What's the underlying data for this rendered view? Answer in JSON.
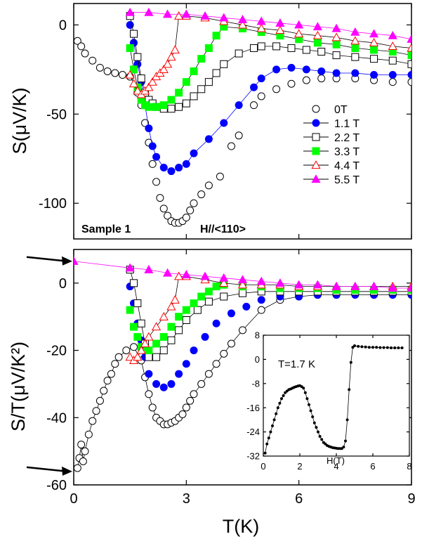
{
  "chart_data": [
    {
      "type": "scatter",
      "panel": "top",
      "xlim": [
        0,
        9
      ],
      "ylim": [
        -120,
        12
      ],
      "yticks": [
        0,
        -50,
        -100
      ],
      "ylabel": "S(μV/K)",
      "xlabel": "",
      "annotations": [
        "Sample 1",
        "H//<110>"
      ],
      "legend_position": "right",
      "series": [
        {
          "name": "0T",
          "color": "#000000",
          "marker": "open-circle",
          "line": false,
          "x": [
            0.1,
            0.2,
            0.3,
            0.5,
            0.7,
            0.9,
            1.1,
            1.3,
            1.5,
            1.7,
            1.8,
            1.9,
            2.0,
            2.1,
            2.2,
            2.3,
            2.4,
            2.5,
            2.6,
            2.7,
            2.8,
            2.9,
            3.0,
            3.1,
            3.2,
            3.4,
            3.6,
            3.9,
            4.2,
            4.4,
            4.8,
            5.0,
            5.4,
            5.8,
            6.2,
            6.6,
            7.0,
            7.5,
            8.0,
            8.5,
            9.0
          ],
          "y": [
            -9,
            -12,
            -16,
            -20,
            -24,
            -26,
            -27,
            -28,
            -29,
            -38,
            -45,
            -55,
            -66,
            -78,
            -88,
            -97,
            -103,
            -107,
            -110,
            -111,
            -111,
            -110,
            -108,
            -104,
            -100,
            -95,
            -90,
            -85,
            -68,
            -62,
            -45,
            -40,
            -36,
            -33,
            -31,
            -30,
            -30,
            -30,
            -31,
            -32,
            -32
          ]
        },
        {
          "name": "1.1 T",
          "color": "#0000ff",
          "marker": "filled-circle",
          "line": true,
          "x": [
            1.5,
            1.6,
            1.7,
            1.8,
            1.9,
            2.0,
            2.1,
            2.2,
            2.4,
            2.6,
            2.8,
            3.0,
            3.2,
            3.6,
            4.0,
            4.4,
            4.8,
            5.0,
            5.4,
            5.8,
            6.2,
            6.6,
            7.0,
            7.5,
            8.0,
            8.5,
            9.0
          ],
          "y": [
            0,
            -10,
            -22,
            -32,
            -45,
            -58,
            -68,
            -74,
            -80,
            -82,
            -80,
            -78,
            -72,
            -64,
            -55,
            -45,
            -35,
            -30,
            -25,
            -24,
            -25,
            -26,
            -27,
            -27,
            -28,
            -28,
            -28
          ]
        },
        {
          "name": "2.2 T",
          "color": "#000000",
          "marker": "open-square",
          "line": true,
          "x": [
            1.5,
            1.6,
            1.7,
            1.8,
            1.9,
            2.0,
            2.1,
            2.2,
            2.4,
            2.6,
            2.8,
            3.0,
            3.2,
            3.4,
            3.6,
            3.8,
            4.0,
            4.4,
            4.8,
            5.0,
            5.4,
            5.8,
            6.2,
            6.6,
            7.0,
            7.5,
            8.0,
            8.5,
            9.0
          ],
          "y": [
            5,
            -5,
            -18,
            -30,
            -38,
            -42,
            -44,
            -46,
            -47,
            -47,
            -46,
            -44,
            -40,
            -36,
            -32,
            -27,
            -22,
            -16,
            -13,
            -12,
            -12,
            -13,
            -14,
            -15,
            -17,
            -18,
            -19,
            -20,
            -22
          ]
        },
        {
          "name": "3.3 T",
          "color": "#00ff00",
          "marker": "filled-square",
          "line": true,
          "x": [
            1.5,
            1.6,
            1.7,
            1.8,
            1.9,
            2.0,
            2.2,
            2.4,
            2.6,
            2.8,
            3.0,
            3.2,
            3.4,
            3.6,
            3.8,
            4.0,
            4.5,
            5.0,
            5.5,
            6.0,
            6.5,
            7.0,
            7.5,
            8.0,
            8.5,
            9.0
          ],
          "y": [
            -13,
            -25,
            -35,
            -42,
            -45,
            -46,
            -46,
            -45,
            -42,
            -38,
            -32,
            -26,
            -19,
            -13,
            -6,
            -1,
            -2,
            -4,
            -6,
            -8,
            -10,
            -11,
            -13,
            -14,
            -15,
            -17
          ]
        },
        {
          "name": "4.4 T",
          "color": "#ff0000",
          "marker": "open-triangle",
          "line": true,
          "x": [
            1.5,
            1.6,
            1.7,
            1.8,
            1.9,
            2.0,
            2.1,
            2.2,
            2.3,
            2.4,
            2.5,
            2.6,
            2.7,
            2.8,
            3.0,
            3.5,
            4.0,
            4.5,
            5.0,
            5.5,
            6.0,
            6.5,
            7.0,
            7.5,
            8.0,
            8.5,
            9.0
          ],
          "y": [
            -28,
            -33,
            -37,
            -39,
            -37,
            -35,
            -32,
            -29,
            -27,
            -25,
            -22,
            -18,
            -14,
            5,
            5,
            4,
            2,
            0,
            -2,
            -3,
            -5,
            -6,
            -7,
            -9,
            -10,
            -12,
            -13
          ]
        },
        {
          "name": "5.5 T",
          "color": "#ff00ff",
          "marker": "filled-triangle",
          "line": true,
          "x": [
            1.5,
            2.0,
            2.5,
            3.0,
            3.5,
            4.0,
            4.5,
            5.0,
            5.5,
            6.0,
            6.5,
            7.0,
            7.5,
            8.0,
            8.5,
            9.0
          ],
          "y": [
            7,
            7,
            6,
            6,
            5,
            4,
            3,
            2,
            1,
            0,
            -1,
            -2,
            -4,
            -5,
            -6,
            -8
          ]
        }
      ]
    },
    {
      "type": "scatter",
      "panel": "bottom",
      "xlim": [
        0,
        9
      ],
      "ylim": [
        -60,
        10
      ],
      "xticks": [
        0,
        3,
        6,
        9
      ],
      "yticks": [
        0,
        -20,
        -40,
        -60
      ],
      "xlabel": "T(K)",
      "ylabel": "S/T(μV/K²)",
      "series": [
        {
          "name": "0T",
          "color": "#000000",
          "marker": "open-circle",
          "line": true,
          "x": [
            0.1,
            0.15,
            0.2,
            0.25,
            0.3,
            0.4,
            0.5,
            0.6,
            0.7,
            0.8,
            0.9,
            1.0,
            1.1,
            1.2,
            1.4,
            1.6,
            1.8,
            1.9,
            2.0,
            2.1,
            2.2,
            2.3,
            2.4,
            2.5,
            2.6,
            2.7,
            2.8,
            2.9,
            3.0,
            3.1,
            3.2,
            3.4,
            3.6,
            3.8,
            4.0,
            4.2,
            4.5,
            5.0,
            5.5,
            6.0,
            6.5,
            7.0,
            8.0,
            9.0
          ],
          "y": [
            -55,
            -52,
            -48,
            -53,
            -50,
            -45,
            -41,
            -38,
            -35,
            -32,
            -29,
            -27,
            -24,
            -22,
            -20,
            -19,
            -23,
            -28,
            -33,
            -37,
            -40,
            -41,
            -42,
            -42,
            -41.5,
            -41,
            -40,
            -39,
            -37,
            -35,
            -33,
            -30,
            -27,
            -24,
            -21,
            -18,
            -14,
            -8,
            -5,
            -4,
            -3.5,
            -3.5,
            -3.5,
            -3.5
          ]
        },
        {
          "name": "1.1 T",
          "color": "#0000ff",
          "marker": "filled-circle",
          "line": false,
          "x": [
            1.5,
            1.6,
            1.7,
            1.8,
            1.9,
            2.0,
            2.2,
            2.4,
            2.6,
            2.8,
            3.0,
            3.2,
            3.5,
            3.8,
            4.2,
            4.6,
            5.0,
            5.5,
            6.0,
            6.5,
            7.0,
            7.5,
            8.0,
            8.5,
            9.0
          ],
          "y": [
            -1,
            -6,
            -12,
            -17,
            -22,
            -27,
            -30,
            -31,
            -30,
            -27,
            -24,
            -20,
            -16,
            -12,
            -9,
            -7,
            -5,
            -4,
            -4,
            -3.5,
            -3.5,
            -3.5,
            -3.5,
            -3.5,
            -3.5
          ]
        },
        {
          "name": "2.2 T",
          "color": "#000000",
          "marker": "open-square",
          "line": true,
          "x": [
            1.5,
            1.6,
            1.7,
            1.8,
            1.9,
            2.0,
            2.2,
            2.4,
            2.6,
            2.8,
            3.0,
            3.3,
            3.6,
            4.0,
            4.5,
            5.0,
            5.5,
            6.0,
            6.5,
            7.0,
            7.5,
            8.0,
            8.5,
            9.0
          ],
          "y": [
            4,
            0,
            -6,
            -12,
            -18,
            -22,
            -22,
            -20,
            -17,
            -14,
            -11,
            -8,
            -5.5,
            -4,
            -3,
            -2.5,
            -2.5,
            -2.5,
            -2.5,
            -2.5,
            -2.5,
            -2.5,
            -2.5,
            -2.5
          ]
        },
        {
          "name": "3.3 T",
          "color": "#00ff00",
          "marker": "filled-square",
          "line": false,
          "x": [
            1.5,
            1.6,
            1.7,
            1.8,
            2.0,
            2.2,
            2.4,
            2.6,
            2.8,
            3.0,
            3.2,
            3.4,
            3.6,
            3.8,
            4.0,
            4.5,
            5.0,
            5.5,
            6.0,
            6.5,
            7.0,
            7.5,
            8.0,
            8.5,
            9.0
          ],
          "y": [
            -8,
            -13,
            -16,
            -19,
            -20,
            -18,
            -16,
            -13,
            -10,
            -8,
            -6,
            -4,
            -2.5,
            -1,
            -0.5,
            -1,
            -1,
            -1.5,
            -1.5,
            -1.5,
            -2,
            -2,
            -2,
            -2,
            -2
          ]
        },
        {
          "name": "4.4 T",
          "color": "#ff0000",
          "marker": "open-triangle",
          "line": true,
          "x": [
            1.5,
            1.6,
            1.7,
            1.8,
            1.9,
            2.0,
            2.2,
            2.4,
            2.6,
            2.7,
            2.8,
            3.0,
            3.5,
            4.0,
            4.5,
            5.0,
            5.5,
            6.0,
            6.5,
            7.0,
            7.5,
            8.0,
            8.5,
            9.0
          ],
          "y": [
            -22,
            -23,
            -22,
            -20,
            -18,
            -16,
            -13,
            -10,
            -7,
            -5,
            2,
            2,
            1,
            0,
            -0.5,
            -0.5,
            -0.5,
            -1,
            -1,
            -1,
            -1,
            -1,
            -1,
            -1
          ]
        },
        {
          "name": "5.5 T",
          "color": "#ff00ff",
          "marker": "filled-triangle",
          "line": true,
          "x": [
            0,
            1.5,
            2.0,
            2.5,
            3.0,
            3.5,
            4.0,
            4.5,
            5.0,
            5.5,
            6.0,
            6.5,
            7.0,
            7.5,
            8.0,
            8.5,
            9.0
          ],
          "y": [
            6.5,
            4.5,
            4,
            3,
            2.5,
            2,
            1.5,
            1,
            0.5,
            0,
            -0.5,
            -0.5,
            -1,
            -1,
            -1,
            -1.5,
            -1.5
          ]
        }
      ],
      "arrows": [
        {
          "label": "",
          "y": 6.5
        },
        {
          "label": "",
          "y": -56
        }
      ]
    },
    {
      "type": "line",
      "panel": "inset",
      "annotation": "T=1.7 K",
      "xlabel": "H(T)",
      "ylabel": "",
      "xlim": [
        0,
        8
      ],
      "ylim": [
        -32,
        8
      ],
      "xticks": [
        0,
        2,
        4,
        6,
        8
      ],
      "yticks": [
        8,
        0,
        -8,
        -16,
        -24,
        -32
      ],
      "series": [
        {
          "name": "",
          "color": "#000000",
          "marker": "filled-circle-small",
          "x": [
            0.1,
            0.2,
            0.3,
            0.4,
            0.5,
            0.6,
            0.7,
            0.8,
            0.9,
            1.0,
            1.1,
            1.2,
            1.3,
            1.4,
            1.5,
            1.6,
            1.7,
            1.8,
            1.9,
            2.0,
            2.1,
            2.2,
            2.3,
            2.4,
            2.5,
            2.6,
            2.7,
            2.8,
            2.9,
            3.0,
            3.1,
            3.2,
            3.3,
            3.4,
            3.5,
            3.6,
            3.7,
            3.8,
            3.9,
            4.0,
            4.1,
            4.2,
            4.3,
            4.4,
            4.5,
            4.6,
            4.7,
            4.8,
            4.9,
            5.0,
            5.2,
            5.4,
            5.6,
            5.8,
            6.0,
            6.2,
            6.4,
            6.6,
            6.8,
            7.0,
            7.2,
            7.4,
            7.6
          ],
          "y": [
            -31,
            -28,
            -26,
            -24,
            -22,
            -20,
            -18,
            -16,
            -14.5,
            -13,
            -12,
            -11,
            -10.5,
            -10,
            -9.8,
            -9.5,
            -9.2,
            -9,
            -8.8,
            -8.7,
            -9,
            -9.5,
            -11,
            -13,
            -15,
            -17,
            -19,
            -21,
            -22.5,
            -24,
            -25.5,
            -26.5,
            -27.5,
            -28,
            -28.5,
            -28.8,
            -29,
            -29.2,
            -29.3,
            -29.4,
            -29.5,
            -29.5,
            -29.5,
            -29,
            -27,
            -20,
            -10,
            -1,
            4,
            4.5,
            4.3,
            4.2,
            4.1,
            4,
            4,
            4,
            3.9,
            3.9,
            3.9,
            3.8,
            3.8,
            3.8,
            3.8
          ]
        }
      ]
    }
  ],
  "legend": {
    "entries": [
      "0T",
      "1.1 T",
      "2.2 T",
      "3.3 T",
      "4.4 T",
      "5.5 T"
    ]
  }
}
